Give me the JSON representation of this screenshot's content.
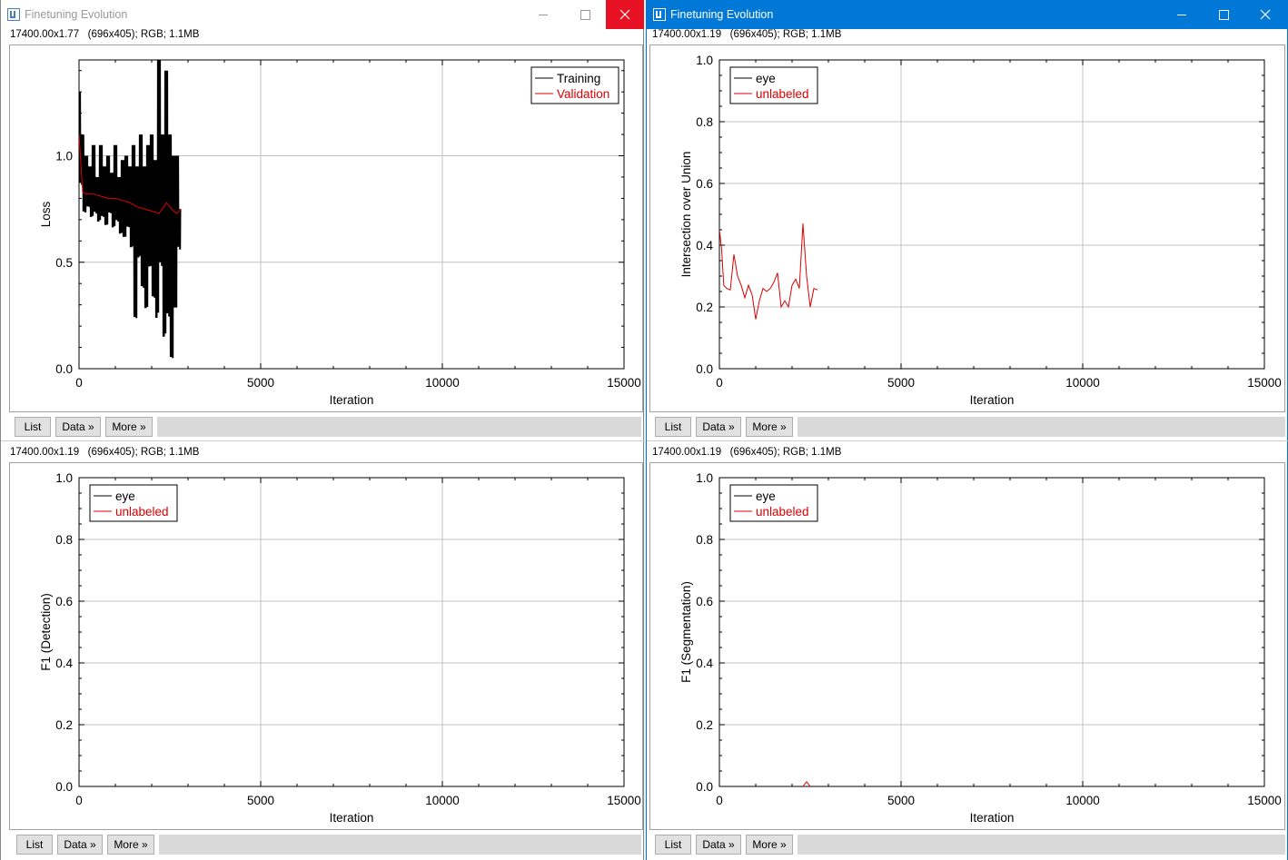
{
  "windows": [
    {
      "title": "Finetuning Evolution",
      "active": false,
      "info": "17400.00x1.77   (696x405); RGB; 1.1MB"
    },
    {
      "title": "Finetuning Evolution",
      "active": true,
      "info": "17400.00x1.19   (696x405); RGB; 1.1MB"
    }
  ],
  "lower_panels": [
    {
      "info": "17400.00x1.19   (696x405); RGB; 1.1MB"
    },
    {
      "info": "17400.00x1.19   (696x405); RGB; 1.1MB"
    }
  ],
  "buttons": {
    "list": "List",
    "data": "Data »",
    "more": "More »"
  },
  "colors": {
    "active_title": "#0078d7",
    "close_hover": "#e81123",
    "training": "#000000",
    "validation": "#dd0000"
  },
  "icons": [
    "imagej-icon",
    "minimize-icon",
    "maximize-icon",
    "close-icon"
  ],
  "chart_data": [
    {
      "type": "line",
      "xlabel": "Iteration",
      "ylabel": "Loss",
      "xlim": [
        0,
        15000
      ],
      "ylim": [
        0,
        1.45
      ],
      "xticks": [
        "0",
        "5000",
        "10000",
        "15000"
      ],
      "yticks": [
        "0.0",
        "0.5",
        "1.0"
      ],
      "grid": true,
      "legend_position": "top-right",
      "series": [
        {
          "name": "Training",
          "color": "#000000",
          "noisy": true,
          "x": [
            0,
            60,
            100,
            150,
            200,
            260,
            300,
            360,
            400,
            460,
            500,
            560,
            600,
            660,
            700,
            760,
            800,
            860,
            900,
            960,
            1000,
            1060,
            1100,
            1160,
            1200,
            1260,
            1300,
            1360,
            1400,
            1460,
            1500,
            1560,
            1600,
            1660,
            1700,
            1760,
            1800,
            1860,
            1900,
            1960,
            2000,
            2060,
            2100,
            2160,
            2200,
            2260,
            2300,
            2360,
            2400,
            2460,
            2500,
            2560,
            2600,
            2660,
            2700,
            2760,
            2800
          ],
          "y": [
            1.3,
            0.85,
            1.1,
            0.72,
            1.0,
            0.75,
            0.95,
            0.7,
            1.05,
            0.72,
            0.9,
            0.68,
            1.05,
            0.7,
            0.95,
            0.66,
            1.0,
            0.72,
            0.92,
            0.65,
            1.05,
            0.68,
            0.9,
            0.62,
            0.98,
            0.6,
            1.0,
            0.65,
            0.95,
            0.55,
            1.05,
            0.2,
            0.95,
            0.5,
            1.1,
            0.35,
            0.95,
            0.25,
            1.05,
            0.45,
            1.1,
            0.3,
            0.98,
            0.2,
            1.45,
            0.45,
            1.1,
            0.1,
            1.4,
            0.2,
            1.1,
            0.0,
            1.0,
            0.25,
            1.0,
            0.55,
            0.75
          ]
        },
        {
          "name": "Validation",
          "color": "#dd0000",
          "x": [
            0,
            100,
            200,
            400,
            600,
            800,
            1000,
            1200,
            1400,
            1600,
            1800,
            2000,
            2200,
            2300,
            2400,
            2500,
            2600,
            2700,
            2800
          ],
          "y": [
            1.1,
            0.83,
            0.82,
            0.82,
            0.81,
            0.8,
            0.8,
            0.79,
            0.78,
            0.76,
            0.75,
            0.74,
            0.73,
            0.75,
            0.78,
            0.76,
            0.74,
            0.73,
            0.75
          ]
        }
      ]
    },
    {
      "type": "line",
      "xlabel": "Iteration",
      "ylabel": "Intersection over Union",
      "xlim": [
        0,
        15000
      ],
      "ylim": [
        0,
        1.0
      ],
      "xticks": [
        "0",
        "5000",
        "10000",
        "15000"
      ],
      "yticks": [
        "0.0",
        "0.2",
        "0.4",
        "0.6",
        "0.8",
        "1.0"
      ],
      "grid": true,
      "legend_position": "top-left",
      "series": [
        {
          "name": "eye",
          "color": "#000000",
          "x": [],
          "y": []
        },
        {
          "name": "unlabeled",
          "color": "#dd0000",
          "x": [
            0,
            60,
            120,
            200,
            300,
            400,
            500,
            600,
            700,
            800,
            900,
            1000,
            1100,
            1200,
            1300,
            1400,
            1500,
            1600,
            1700,
            1800,
            1900,
            2000,
            2100,
            2200,
            2300,
            2400,
            2500,
            2600,
            2700
          ],
          "y": [
            0.45,
            0.39,
            0.27,
            0.26,
            0.255,
            0.37,
            0.3,
            0.27,
            0.23,
            0.27,
            0.24,
            0.16,
            0.22,
            0.26,
            0.25,
            0.26,
            0.28,
            0.31,
            0.2,
            0.22,
            0.2,
            0.27,
            0.29,
            0.26,
            0.47,
            0.3,
            0.2,
            0.26,
            0.255
          ]
        }
      ]
    },
    {
      "type": "line",
      "xlabel": "Iteration",
      "ylabel": "F1 (Detection)",
      "xlim": [
        0,
        15000
      ],
      "ylim": [
        0,
        1.0
      ],
      "xticks": [
        "0",
        "5000",
        "10000",
        "15000"
      ],
      "yticks": [
        "0.0",
        "0.2",
        "0.4",
        "0.6",
        "0.8",
        "1.0"
      ],
      "grid": true,
      "legend_position": "top-left",
      "series": [
        {
          "name": "eye",
          "color": "#000000",
          "x": [],
          "y": []
        },
        {
          "name": "unlabeled",
          "color": "#dd0000",
          "x": [],
          "y": []
        }
      ]
    },
    {
      "type": "line",
      "xlabel": "Iteration",
      "ylabel": "F1 (Segmentation)",
      "xlim": [
        0,
        15000
      ],
      "ylim": [
        0,
        1.0
      ],
      "xticks": [
        "0",
        "5000",
        "10000",
        "15000"
      ],
      "yticks": [
        "0.0",
        "0.2",
        "0.4",
        "0.6",
        "0.8",
        "1.0"
      ],
      "grid": true,
      "legend_position": "top-left",
      "series": [
        {
          "name": "eye",
          "color": "#000000",
          "x": [],
          "y": []
        },
        {
          "name": "unlabeled",
          "color": "#dd0000",
          "x": [
            2300,
            2400,
            2500
          ],
          "y": [
            0,
            0.015,
            0
          ]
        }
      ]
    }
  ]
}
